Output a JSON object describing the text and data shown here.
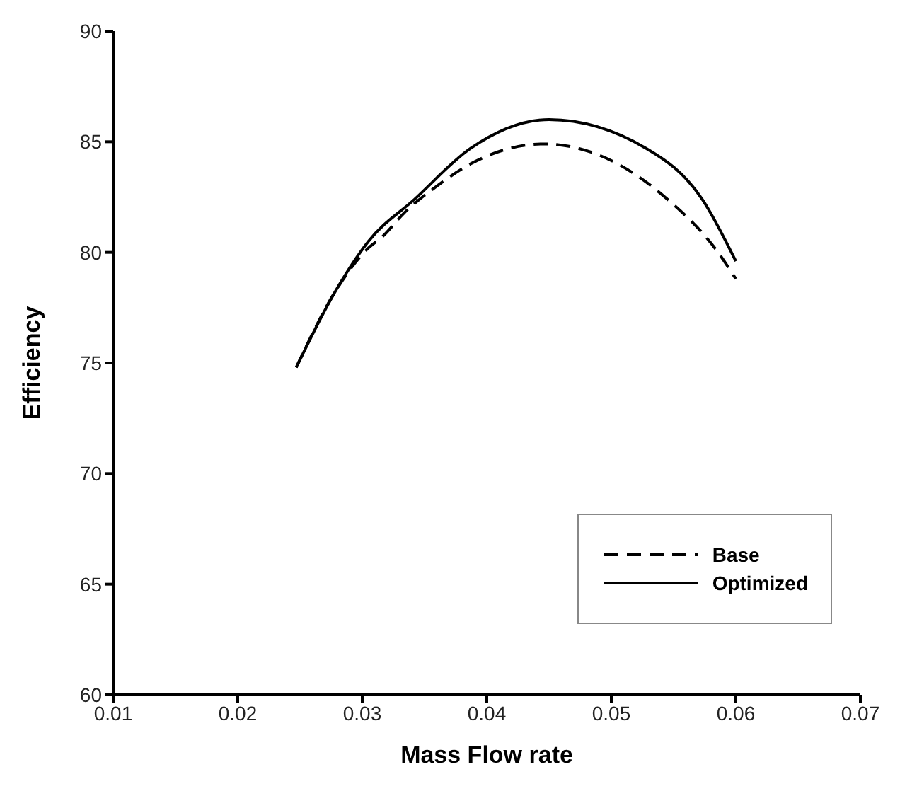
{
  "chart_data": {
    "type": "line",
    "xlabel": "Mass Flow rate",
    "ylabel": "Efficiency",
    "xlim": [
      0.01,
      0.07
    ],
    "xticks": [
      0.01,
      0.02,
      0.03,
      0.04,
      0.05,
      0.06,
      0.07
    ],
    "ylim": [
      60,
      90
    ],
    "yticks": [
      60,
      65,
      70,
      75,
      80,
      85,
      90
    ],
    "legend": "bottom right",
    "marker": "none",
    "series": [
      {
        "name": "Base",
        "color": "#000000",
        "line_style": "dashed",
        "x": [
          0.0247,
          0.0278,
          0.0305,
          0.0316,
          0.0334,
          0.036,
          0.0387,
          0.0446,
          0.049,
          0.0543,
          0.0587,
          0.06
        ],
        "values": [
          74.8,
          78.2,
          80.2,
          80.7,
          81.8,
          83.0,
          84.0,
          84.9,
          84.4,
          82.5,
          79.9,
          78.8
        ]
      },
      {
        "name": "Optimized",
        "color": "#000000",
        "line_style": "solid",
        "x": [
          0.0247,
          0.0278,
          0.0305,
          0.0342,
          0.0387,
          0.045,
          0.0528,
          0.0573,
          0.06
        ],
        "values": [
          74.8,
          78.2,
          80.5,
          82.4,
          84.7,
          86.0,
          84.7,
          82.4,
          79.6
        ]
      }
    ]
  }
}
